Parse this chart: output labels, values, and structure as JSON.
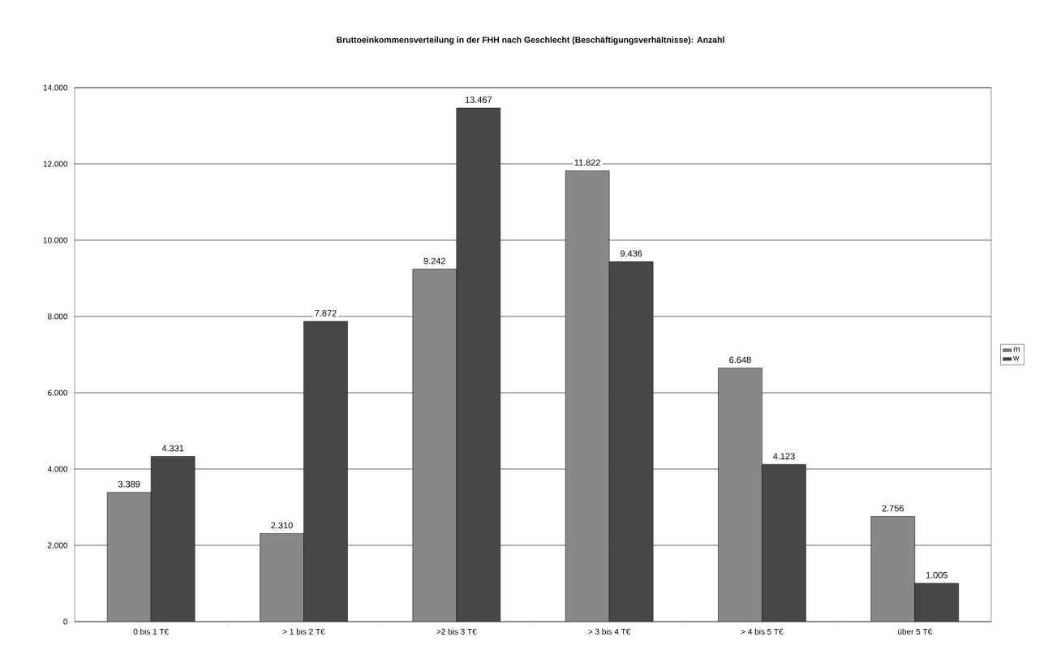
{
  "chart_data": {
    "type": "bar",
    "title": "Bruttoeinkommensverteilung in der FHH nach Geschlecht (Beschäftigungsverhältnisse): Anzahl",
    "categories": [
      "0 bis 1 T€",
      "> 1 bis 2 T€",
      ">2 bis 3 T€",
      "> 3 bis 4 T€",
      "> 4 bis 5 T€",
      "über 5 T€"
    ],
    "series": [
      {
        "name": "m",
        "color": "#888888",
        "values": [
          3389,
          2310,
          9242,
          11822,
          6648,
          2756
        ],
        "value_labels": [
          "3.389",
          "2.310",
          "9.242",
          "11.822",
          "6.648",
          "2.756"
        ]
      },
      {
        "name": "w",
        "color": "#474747",
        "values": [
          4331,
          7872,
          13467,
          9436,
          4123,
          1005
        ],
        "value_labels": [
          "4.331",
          "7.872",
          "13.467",
          "9.436",
          "4.123",
          "1.005"
        ]
      }
    ],
    "ylim": [
      0,
      14000
    ],
    "yticks": [
      {
        "value": 0,
        "label": "0"
      },
      {
        "value": 2000,
        "label": "2.000"
      },
      {
        "value": 4000,
        "label": "4.000"
      },
      {
        "value": 6000,
        "label": "6.000"
      },
      {
        "value": 8000,
        "label": "8.000"
      },
      {
        "value": 10000,
        "label": "10.000"
      },
      {
        "value": 12000,
        "label": "12.000"
      },
      {
        "value": 14000,
        "label": "14.000"
      }
    ],
    "grid": "y",
    "legend": "right"
  }
}
